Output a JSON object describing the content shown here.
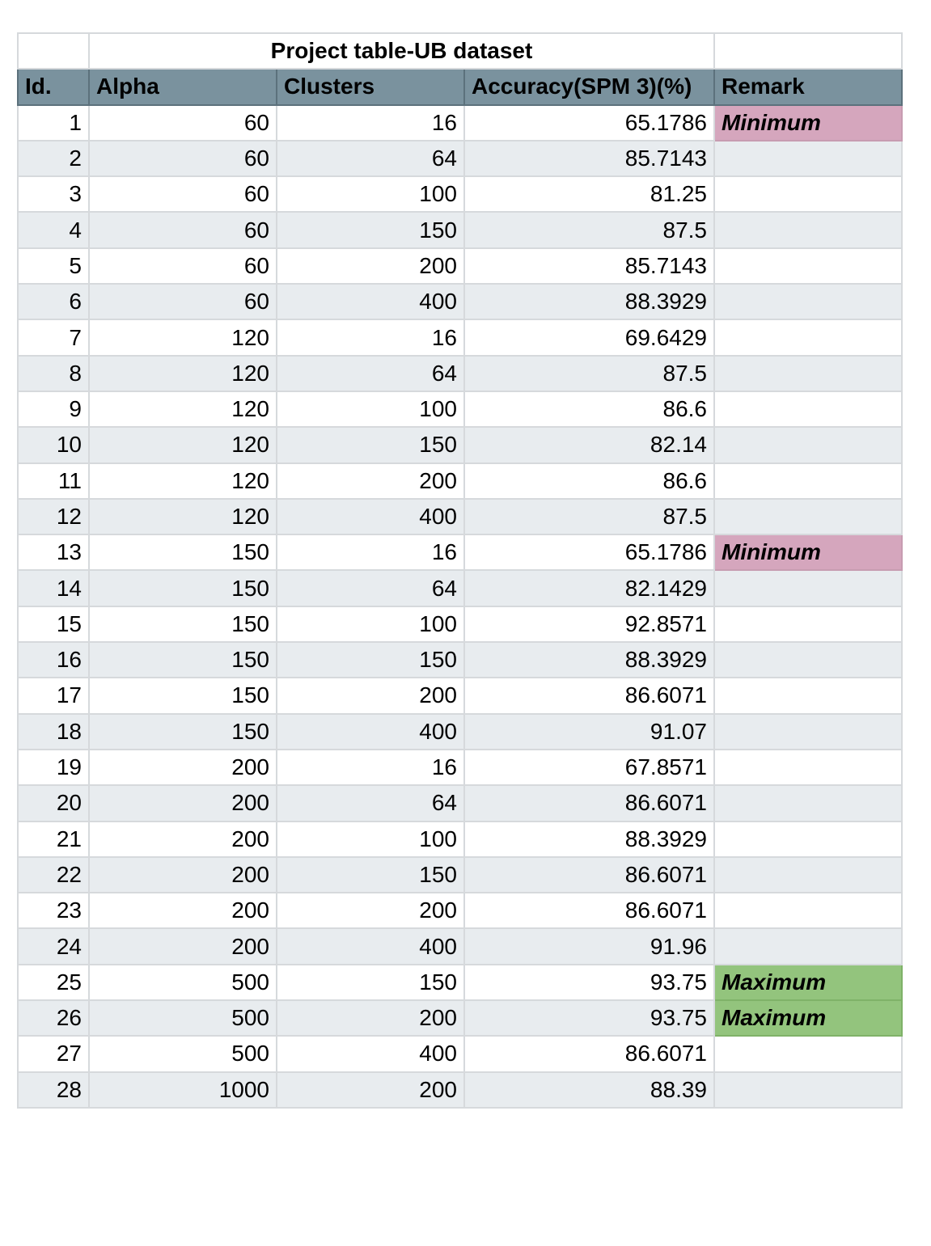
{
  "title": "Project table-UB dataset",
  "columns": [
    "Id.",
    "Alpha",
    "Clusters",
    "Accuracy(SPM 3)(%)",
    "Remark"
  ],
  "colors": {
    "header_bg": "#7a929e",
    "alt_row_bg": "#e8ecef",
    "minimum_bg": "#d5a6bd",
    "maximum_bg": "#93c47d"
  },
  "rows": [
    {
      "id": "1",
      "alpha": "60",
      "clusters": "16",
      "accuracy": "65.1786",
      "remark": "Minimum"
    },
    {
      "id": "2",
      "alpha": "60",
      "clusters": "64",
      "accuracy": "85.7143",
      "remark": ""
    },
    {
      "id": "3",
      "alpha": "60",
      "clusters": "100",
      "accuracy": "81.25",
      "remark": ""
    },
    {
      "id": "4",
      "alpha": "60",
      "clusters": "150",
      "accuracy": "87.5",
      "remark": ""
    },
    {
      "id": "5",
      "alpha": "60",
      "clusters": "200",
      "accuracy": "85.7143",
      "remark": ""
    },
    {
      "id": "6",
      "alpha": "60",
      "clusters": "400",
      "accuracy": "88.3929",
      "remark": ""
    },
    {
      "id": "7",
      "alpha": "120",
      "clusters": "16",
      "accuracy": "69.6429",
      "remark": ""
    },
    {
      "id": "8",
      "alpha": "120",
      "clusters": "64",
      "accuracy": "87.5",
      "remark": ""
    },
    {
      "id": "9",
      "alpha": "120",
      "clusters": "100",
      "accuracy": "86.6",
      "remark": ""
    },
    {
      "id": "10",
      "alpha": "120",
      "clusters": "150",
      "accuracy": "82.14",
      "remark": ""
    },
    {
      "id": "11",
      "alpha": "120",
      "clusters": "200",
      "accuracy": "86.6",
      "remark": ""
    },
    {
      "id": "12",
      "alpha": "120",
      "clusters": "400",
      "accuracy": "87.5",
      "remark": ""
    },
    {
      "id": "13",
      "alpha": "150",
      "clusters": "16",
      "accuracy": "65.1786",
      "remark": "Minimum"
    },
    {
      "id": "14",
      "alpha": "150",
      "clusters": "64",
      "accuracy": "82.1429",
      "remark": ""
    },
    {
      "id": "15",
      "alpha": "150",
      "clusters": "100",
      "accuracy": "92.8571",
      "remark": ""
    },
    {
      "id": "16",
      "alpha": "150",
      "clusters": "150",
      "accuracy": "88.3929",
      "remark": ""
    },
    {
      "id": "17",
      "alpha": "150",
      "clusters": "200",
      "accuracy": "86.6071",
      "remark": ""
    },
    {
      "id": "18",
      "alpha": "150",
      "clusters": "400",
      "accuracy": "91.07",
      "remark": ""
    },
    {
      "id": "19",
      "alpha": "200",
      "clusters": "16",
      "accuracy": "67.8571",
      "remark": ""
    },
    {
      "id": "20",
      "alpha": "200",
      "clusters": "64",
      "accuracy": "86.6071",
      "remark": ""
    },
    {
      "id": "21",
      "alpha": "200",
      "clusters": "100",
      "accuracy": "88.3929",
      "remark": ""
    },
    {
      "id": "22",
      "alpha": "200",
      "clusters": "150",
      "accuracy": "86.6071",
      "remark": ""
    },
    {
      "id": "23",
      "alpha": "200",
      "clusters": "200",
      "accuracy": "86.6071",
      "remark": ""
    },
    {
      "id": "24",
      "alpha": "200",
      "clusters": "400",
      "accuracy": "91.96",
      "remark": ""
    },
    {
      "id": "25",
      "alpha": "500",
      "clusters": "150",
      "accuracy": "93.75",
      "remark": "Maximum"
    },
    {
      "id": "26",
      "alpha": "500",
      "clusters": "200",
      "accuracy": "93.75",
      "remark": "Maximum"
    },
    {
      "id": "27",
      "alpha": "500",
      "clusters": "400",
      "accuracy": "86.6071",
      "remark": ""
    },
    {
      "id": "28",
      "alpha": "1000",
      "clusters": "200",
      "accuracy": "88.39",
      "remark": ""
    }
  ]
}
